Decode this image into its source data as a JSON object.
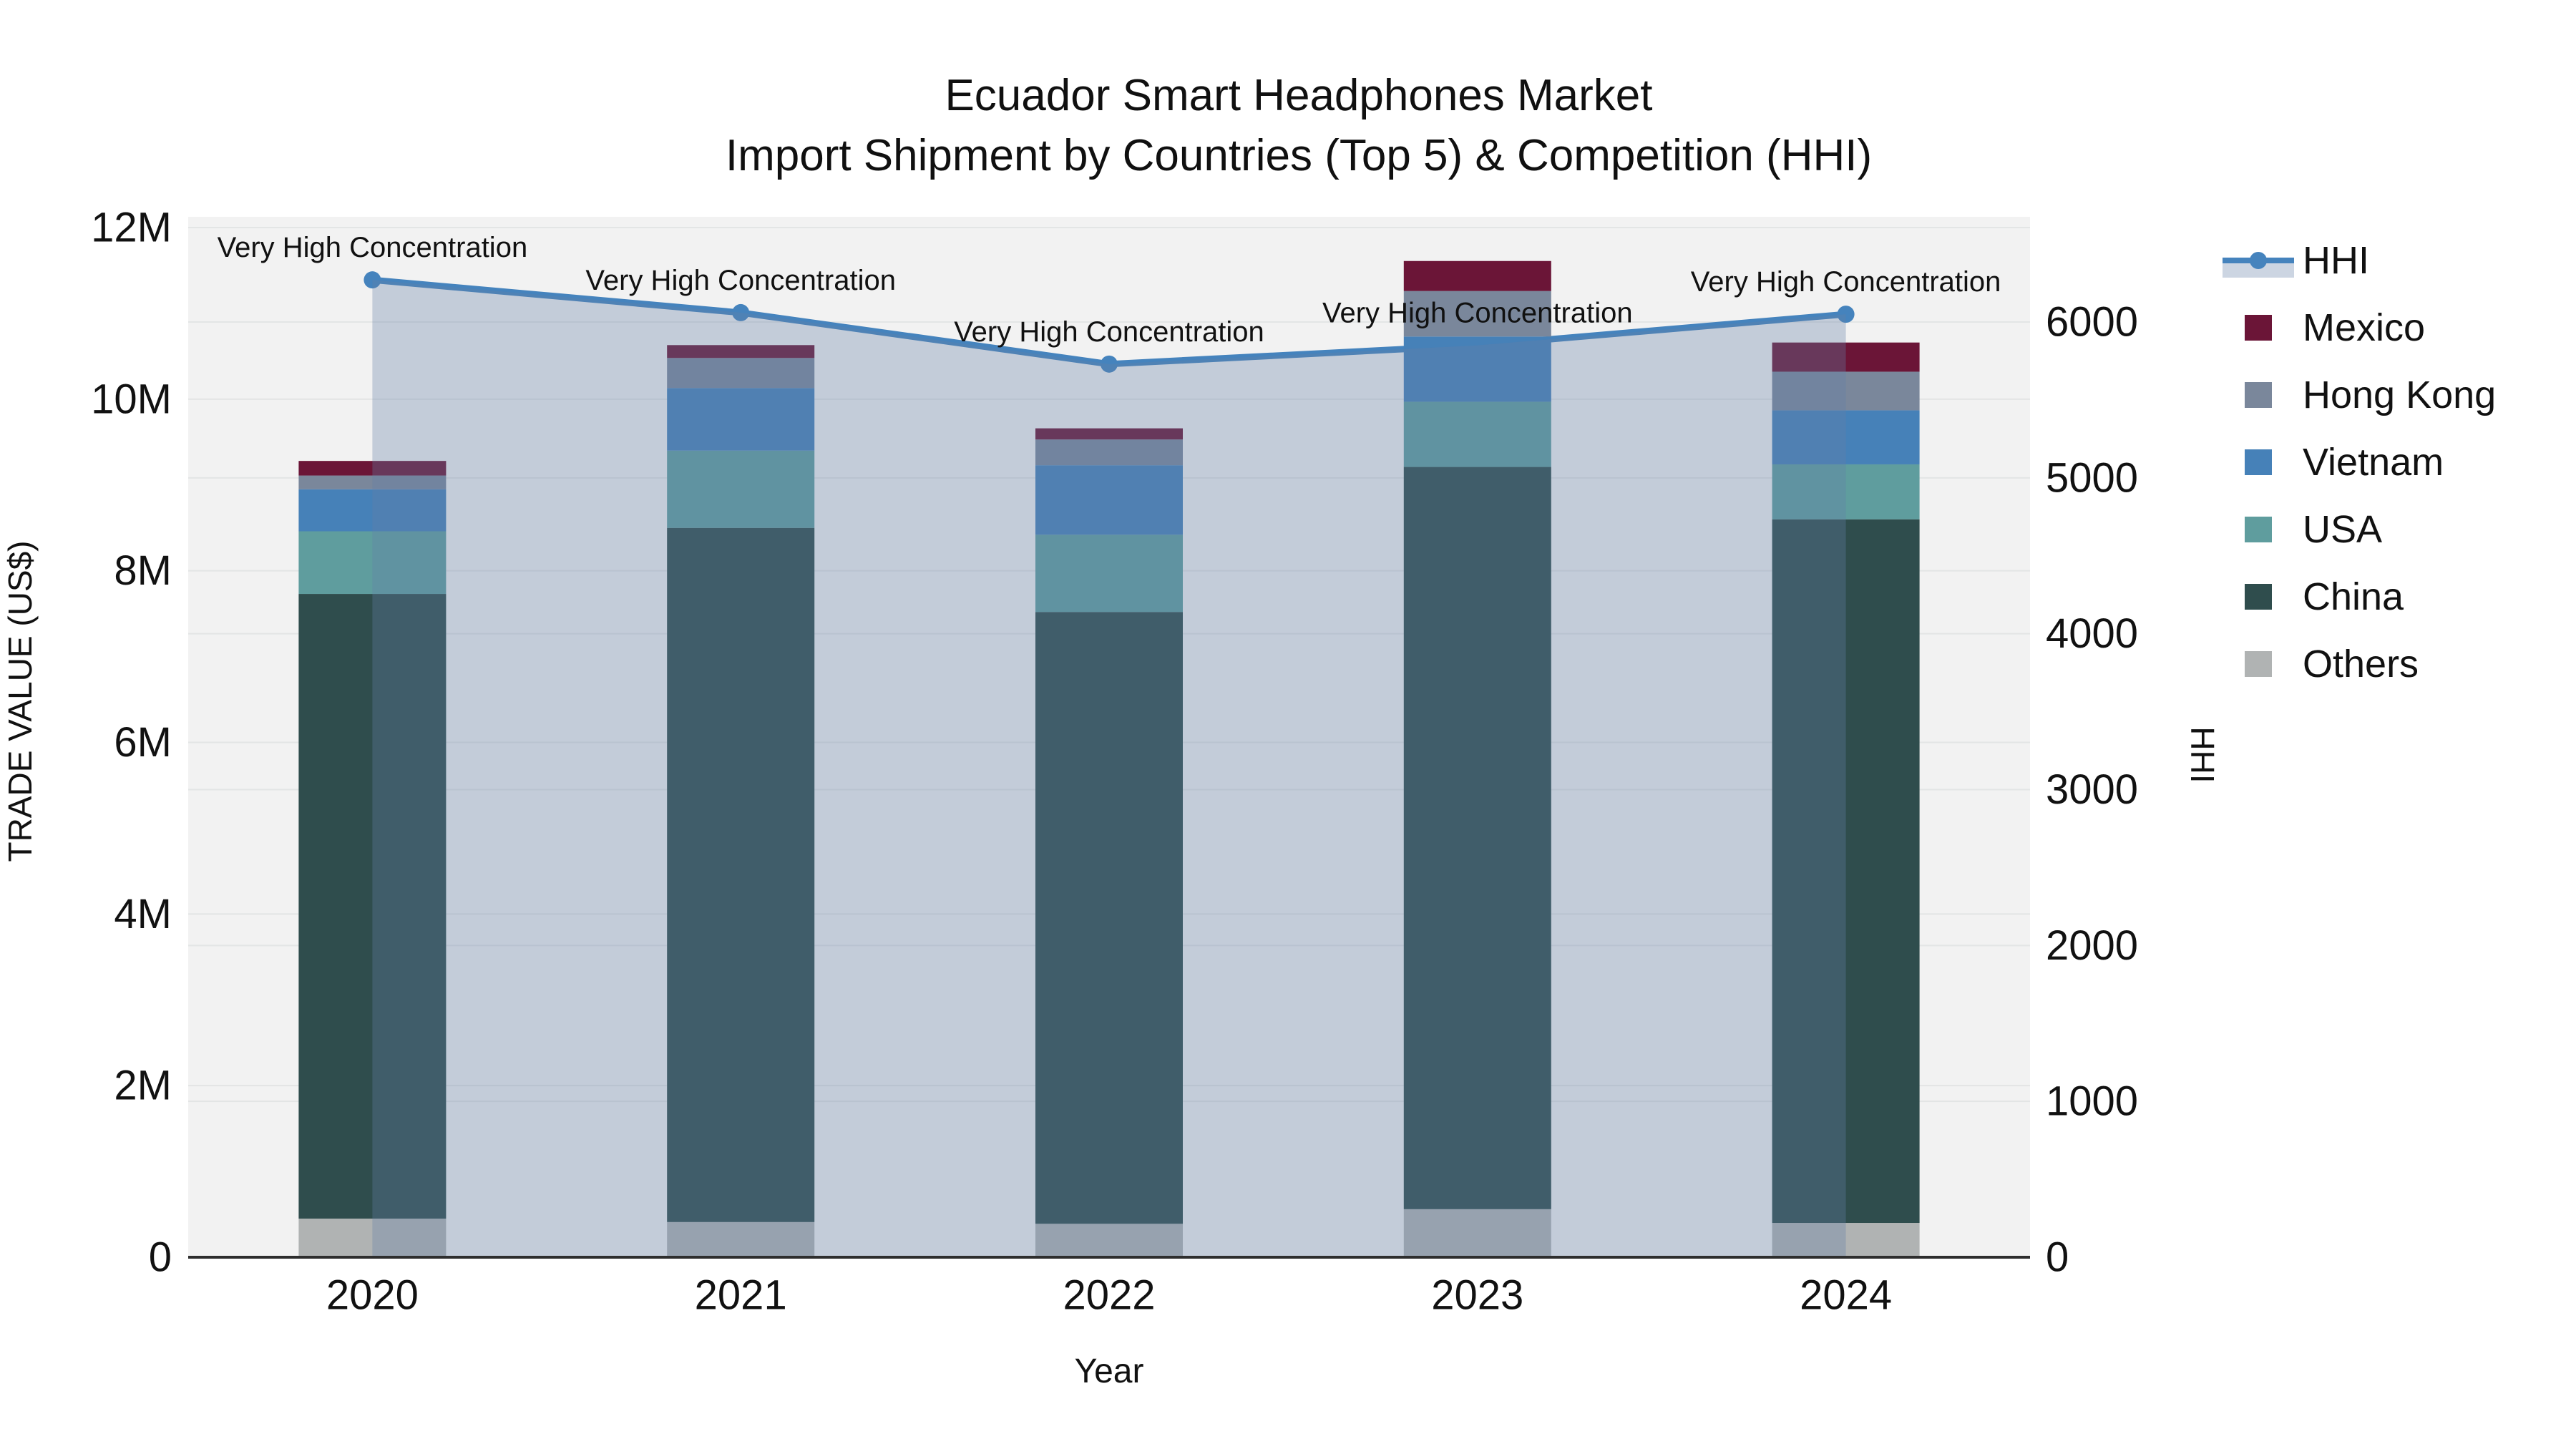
{
  "title": {
    "line1": "Ecuador Smart Headphones Market",
    "line2": "Import Shipment by Countries (Top 5) & Competition (HHI)"
  },
  "axes": {
    "x": {
      "title": "Year",
      "ticks": [
        "2020",
        "2021",
        "2022",
        "2023",
        "2024"
      ]
    },
    "y_left": {
      "title": "TRADE VALUE (US$)",
      "ticks": [
        "0",
        "2M",
        "4M",
        "6M",
        "8M",
        "10M",
        "12M"
      ],
      "tick_values_musd": [
        0,
        2,
        4,
        6,
        8,
        10,
        12
      ]
    },
    "y_right": {
      "title": "HHI",
      "ticks": [
        "0",
        "1000",
        "2000",
        "3000",
        "4000",
        "5000",
        "6000"
      ],
      "tick_values": [
        0,
        1000,
        2000,
        3000,
        4000,
        5000,
        6000
      ]
    }
  },
  "legend": {
    "items": [
      {
        "label": "HHI",
        "kind": "line",
        "color": "#4583BD"
      },
      {
        "label": "Mexico",
        "kind": "swatch",
        "color": "#6B1537"
      },
      {
        "label": "Hong Kong",
        "kind": "swatch",
        "color": "#7A879B"
      },
      {
        "label": "Vietnam",
        "kind": "swatch",
        "color": "#4681B8"
      },
      {
        "label": "USA",
        "kind": "swatch",
        "color": "#5F9D9E"
      },
      {
        "label": "China",
        "kind": "swatch",
        "color": "#2F4D4D"
      },
      {
        "label": "Others",
        "kind": "swatch",
        "color": "#B0B3B3"
      }
    ]
  },
  "colors": {
    "plot_bg": "#f2f2f2",
    "gridline": "#e3e5e5",
    "axis_line": "#2e2e2e",
    "hhi_line": "#4583BD",
    "hhi_area": "rgba(100,128,166,0.33)"
  },
  "chart_data": {
    "type": "bar",
    "subtype": "stacked-bars-with-line-area-overlay",
    "title": "Ecuador Smart Headphones Market — Import Shipment by Countries (Top 5) & Competition (HHI)",
    "xlabel": "Year",
    "ylabel_left": "TRADE VALUE (US$)",
    "ylabel_right": "HHI",
    "categories": [
      "2020",
      "2021",
      "2022",
      "2023",
      "2024"
    ],
    "bar_unit": "millions USD",
    "series": [
      {
        "name": "Others",
        "color": "#B0B3B3",
        "values_musd": [
          0.45,
          0.41,
          0.39,
          0.56,
          0.4
        ]
      },
      {
        "name": "China",
        "color": "#2F4D4D",
        "values_musd": [
          7.28,
          8.09,
          7.13,
          8.65,
          8.2
        ]
      },
      {
        "name": "USA",
        "color": "#5F9D9E",
        "values_musd": [
          0.73,
          0.9,
          0.9,
          0.76,
          0.64
        ]
      },
      {
        "name": "Vietnam",
        "color": "#4681B8",
        "values_musd": [
          0.49,
          0.73,
          0.81,
          0.76,
          0.63
        ]
      },
      {
        "name": "Hong Kong",
        "color": "#7A879B",
        "values_musd": [
          0.16,
          0.35,
          0.3,
          0.53,
          0.45
        ]
      },
      {
        "name": "Mexico",
        "color": "#6B1537",
        "values_musd": [
          0.17,
          0.15,
          0.13,
          0.35,
          0.34
        ]
      }
    ],
    "line_series": {
      "name": "HHI",
      "color": "#4583BD",
      "values": [
        6270,
        6060,
        5730,
        5850,
        6050
      ],
      "axis": "right",
      "area_fill": true
    },
    "annotations": [
      {
        "x": "2020",
        "text": "Very High Concentration"
      },
      {
        "x": "2021",
        "text": "Very High Concentration"
      },
      {
        "x": "2022",
        "text": "Very High Concentration"
      },
      {
        "x": "2023",
        "text": "Very High Concentration"
      },
      {
        "x": "2024",
        "text": "Very High Concentration"
      }
    ],
    "ylim_left_musd": [
      0,
      12.13
    ],
    "ylim_right": [
      0,
      6676
    ],
    "grid": true,
    "legend_position": "right"
  }
}
